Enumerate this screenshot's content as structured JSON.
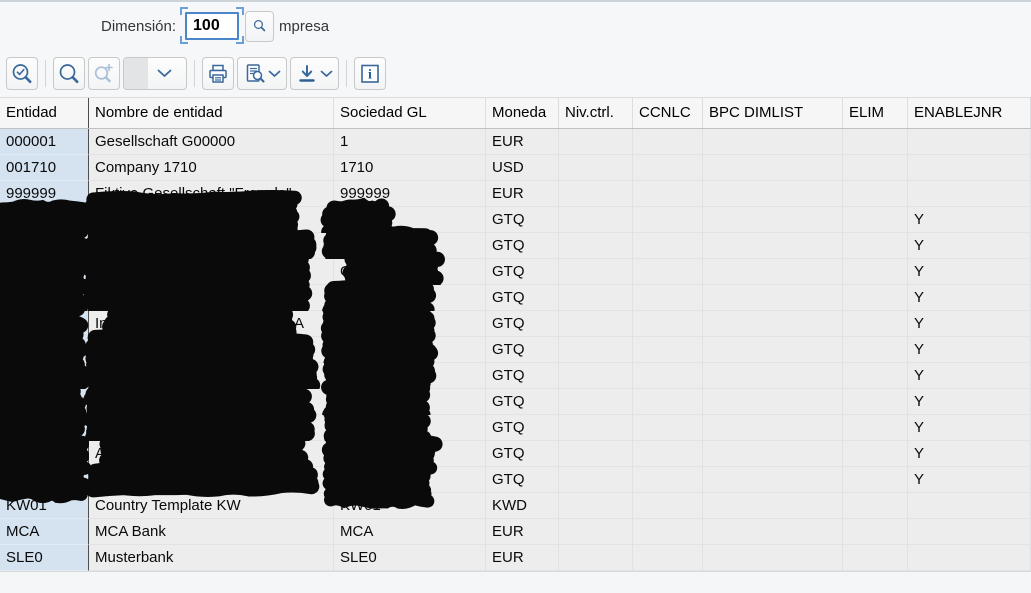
{
  "titlebar": {
    "dimension_label": "Dimensión:",
    "dimension_value": "100",
    "suffix_text": "mpresa",
    "matchcode_icon": "search-icon"
  },
  "toolbar": {
    "buttons": [
      "zoom-check-icon",
      "search-icon",
      "search-plus-icon",
      "layout-select",
      "print-icon",
      "print-preview-icon",
      "export-icon",
      "info-icon"
    ]
  },
  "table": {
    "columns": [
      "Entidad",
      "Nombre de entidad",
      "Sociedad GL",
      "Moneda",
      "Niv.ctrl.",
      "CCNLC",
      "BPC DIMLIST",
      "ELIM",
      "ENABLEJNR"
    ],
    "rows": [
      {
        "entidad": "000001",
        "nombre": "Gesellschaft G00000",
        "sociedad": "1",
        "moneda": "EUR",
        "nivctrl": "",
        "ccnlc": "",
        "bpc": "",
        "elim": "",
        "enablejnr": ""
      },
      {
        "entidad": "001710",
        "nombre": "Company 1710",
        "sociedad": "1710",
        "moneda": "USD",
        "nivctrl": "",
        "ccnlc": "",
        "bpc": "",
        "elim": "",
        "enablejnr": ""
      },
      {
        "entidad": "999999",
        "nombre": "Fiktive Gesellschaft \"Fremde\"",
        "sociedad": "999999",
        "moneda": "EUR",
        "nivctrl": "",
        "ccnlc": "",
        "bpc": "",
        "elim": "",
        "enablejnr": ""
      },
      {
        "entidad": "",
        "nombre": "",
        "sociedad": "",
        "moneda": "GTQ",
        "nivctrl": "",
        "ccnlc": "",
        "bpc": "",
        "elim": "",
        "enablejnr": "Y",
        "redacted": [
          "entidad",
          "nombre",
          "sociedad"
        ]
      },
      {
        "entidad": "",
        "nombre": "",
        "sociedad": "",
        "moneda": "GTQ",
        "nivctrl": "",
        "ccnlc": "",
        "bpc": "",
        "elim": "",
        "enablejnr": "Y",
        "redacted": [
          "entidad",
          "nombre",
          "sociedad"
        ]
      },
      {
        "entidad": "",
        "nombre": "",
        "sociedad": "",
        "moneda": "GTQ",
        "nivctrl": "",
        "ccnlc": "",
        "bpc": "",
        "elim": "",
        "enablejnr": "Y",
        "redacted": [
          "entidad",
          "nombre",
          "sociedad"
        ],
        "sociedad_prefix": "G"
      },
      {
        "entidad": "",
        "nombre": "",
        "sociedad": "",
        "moneda": "GTQ",
        "nivctrl": "",
        "ccnlc": "",
        "bpc": "",
        "elim": "",
        "enablejnr": "Y",
        "redacted": [
          "entidad",
          "nombre",
          "sociedad"
        ]
      },
      {
        "entidad": "",
        "nombre": "",
        "sociedad": "",
        "moneda": "GTQ",
        "nivctrl": "",
        "ccnlc": "",
        "bpc": "",
        "elim": "",
        "enablejnr": "Y",
        "redacted": [
          "entidad",
          "nombre",
          "sociedad"
        ],
        "nombre_prefix": "In",
        "nombre_suffix": "A"
      },
      {
        "entidad": "",
        "nombre": "",
        "sociedad": "",
        "moneda": "GTQ",
        "nivctrl": "",
        "ccnlc": "",
        "bpc": "",
        "elim": "",
        "enablejnr": "Y",
        "redacted": [
          "entidad",
          "nombre",
          "sociedad"
        ]
      },
      {
        "entidad": "",
        "nombre": "",
        "sociedad": "",
        "moneda": "GTQ",
        "nivctrl": "",
        "ccnlc": "",
        "bpc": "",
        "elim": "",
        "enablejnr": "Y",
        "redacted": [
          "entidad",
          "nombre",
          "sociedad"
        ]
      },
      {
        "entidad": "",
        "nombre": "",
        "sociedad": "",
        "moneda": "GTQ",
        "nivctrl": "",
        "ccnlc": "",
        "bpc": "",
        "elim": "",
        "enablejnr": "Y",
        "redacted": [
          "entidad",
          "nombre",
          "sociedad"
        ]
      },
      {
        "entidad": "",
        "nombre": "",
        "sociedad": "",
        "moneda": "GTQ",
        "nivctrl": "",
        "ccnlc": "",
        "bpc": "",
        "elim": "",
        "enablejnr": "Y",
        "redacted": [
          "entidad",
          "nombre",
          "sociedad"
        ]
      },
      {
        "entidad": "",
        "nombre": "",
        "sociedad": "",
        "moneda": "GTQ",
        "nivctrl": "",
        "ccnlc": "",
        "bpc": "",
        "elim": "",
        "enablejnr": "Y",
        "redacted": [
          "entidad",
          "nombre",
          "sociedad"
        ],
        "nombre_prefix": "A"
      },
      {
        "entidad": "",
        "nombre": "",
        "sociedad": "",
        "moneda": "GTQ",
        "nivctrl": "",
        "ccnlc": "",
        "bpc": "",
        "elim": "",
        "enablejnr": "Y",
        "redacted": [
          "entidad",
          "nombre",
          "sociedad"
        ]
      },
      {
        "entidad": "KW01",
        "nombre": "Country Template KW",
        "sociedad": "KW01",
        "moneda": "KWD",
        "nivctrl": "",
        "ccnlc": "",
        "bpc": "",
        "elim": "",
        "enablejnr": ""
      },
      {
        "entidad": "MCA",
        "nombre": "MCA Bank",
        "sociedad": "MCA",
        "moneda": "EUR",
        "nivctrl": "",
        "ccnlc": "",
        "bpc": "",
        "elim": "",
        "enablejnr": ""
      },
      {
        "entidad": "SLE0",
        "nombre": "Musterbank",
        "sociedad": "SLE0",
        "moneda": "EUR",
        "nivctrl": "",
        "ccnlc": "",
        "bpc": "",
        "elim": "",
        "enablejnr": ""
      }
    ]
  },
  "colors": {
    "accent_blue": "#39689a",
    "key_column_bg": "#d5e3f1",
    "cell_bg": "#ededee",
    "focus_border": "#4a86c8"
  }
}
